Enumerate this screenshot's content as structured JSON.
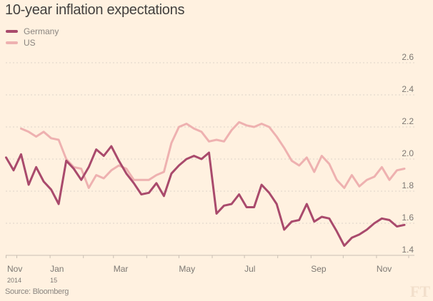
{
  "chart_data": {
    "type": "line",
    "title": "10-year inflation expectations",
    "source": "Source: Bloomberg",
    "logo": "FT",
    "xlim": [
      "2014-11-21",
      "2015-11-27"
    ],
    "ylim": [
      1.4,
      2.6
    ],
    "yticks": [
      "1.4",
      "1.6",
      "1.8",
      "2.0",
      "2.2",
      "2.4",
      "2.6"
    ],
    "grid": true,
    "legend_placement": "top-left",
    "xtick_labels": [
      {
        "label": "Nov",
        "sub": "2014",
        "date": "2014-11-21"
      },
      {
        "label": "Jan",
        "sub": "15",
        "date": "2015-01-01"
      },
      {
        "label": "Mar",
        "sub": "",
        "date": "2015-03-01"
      },
      {
        "label": "May",
        "sub": "",
        "date": "2015-05-01"
      },
      {
        "label": "Jul",
        "sub": "",
        "date": "2015-07-01"
      },
      {
        "label": "Sep",
        "sub": "",
        "date": "2015-09-01"
      },
      {
        "label": "Nov",
        "sub": "",
        "date": "2015-11-01"
      }
    ],
    "x": [
      "2014-11-21",
      "2014-11-28",
      "2014-12-05",
      "2014-12-12",
      "2014-12-19",
      "2014-12-26",
      "2015-01-02",
      "2015-01-09",
      "2015-01-16",
      "2015-01-23",
      "2015-01-30",
      "2015-02-06",
      "2015-02-13",
      "2015-02-20",
      "2015-02-27",
      "2015-03-06",
      "2015-03-13",
      "2015-03-20",
      "2015-03-27",
      "2015-04-03",
      "2015-04-10",
      "2015-04-17",
      "2015-04-24",
      "2015-05-01",
      "2015-05-08",
      "2015-05-15",
      "2015-05-22",
      "2015-05-29",
      "2015-06-05",
      "2015-06-12",
      "2015-06-19",
      "2015-06-26",
      "2015-07-03",
      "2015-07-10",
      "2015-07-17",
      "2015-07-24",
      "2015-07-31",
      "2015-08-07",
      "2015-08-14",
      "2015-08-21",
      "2015-08-28",
      "2015-09-04",
      "2015-09-11",
      "2015-09-18",
      "2015-09-25",
      "2015-10-02",
      "2015-10-09",
      "2015-10-16",
      "2015-10-23",
      "2015-10-30",
      "2015-11-06",
      "2015-11-13",
      "2015-11-20",
      "2015-11-27"
    ],
    "series": [
      {
        "name": "Germany",
        "color": "#a94a6c",
        "values": [
          2.01,
          1.93,
          2.03,
          1.84,
          1.95,
          1.86,
          1.81,
          1.72,
          1.99,
          1.94,
          1.87,
          1.95,
          2.06,
          2.02,
          2.08,
          1.99,
          1.91,
          1.85,
          1.78,
          1.79,
          1.85,
          1.77,
          1.91,
          1.96,
          2.0,
          2.02,
          2.0,
          2.04,
          1.66,
          1.71,
          1.72,
          1.78,
          1.7,
          1.7,
          1.84,
          1.79,
          1.72,
          1.56,
          1.61,
          1.62,
          1.72,
          1.61,
          1.64,
          1.63,
          1.55,
          1.46,
          1.51,
          1.53,
          1.56,
          1.6,
          1.63,
          1.62,
          1.58,
          1.59
        ]
      },
      {
        "name": "US",
        "color": "#eeb1b0",
        "values": [
          null,
          null,
          2.19,
          2.17,
          2.14,
          2.17,
          2.13,
          2.12,
          2.0,
          1.95,
          1.94,
          1.82,
          1.9,
          1.88,
          1.93,
          1.96,
          1.94,
          1.87,
          1.87,
          1.87,
          1.9,
          1.92,
          2.1,
          2.2,
          2.22,
          2.19,
          2.17,
          2.11,
          2.12,
          2.11,
          2.18,
          2.23,
          2.21,
          2.2,
          2.22,
          2.2,
          2.14,
          2.07,
          1.99,
          1.96,
          2.01,
          1.92,
          2.02,
          1.97,
          1.87,
          1.82,
          1.9,
          1.83,
          1.87,
          1.89,
          1.95,
          1.87,
          1.93,
          1.94
        ]
      }
    ]
  }
}
